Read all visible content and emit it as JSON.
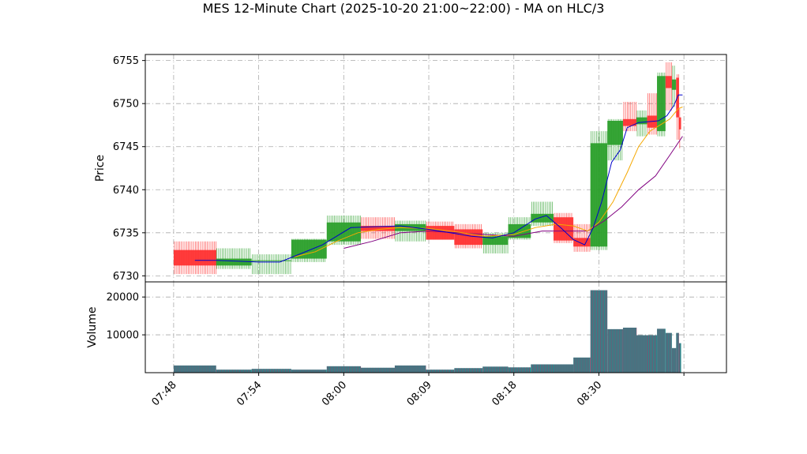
{
  "title": "MES 12-Minute Chart (2025-10-20 21:00~22:00) - MA on HLC/3",
  "colors": {
    "up": "#2ca02c",
    "down": "#ff3333",
    "ma_fast": "#0000cc",
    "ma_mid": "#f5a800",
    "ma_slow": "#800080",
    "volume_fill": "#1f8f8f",
    "volume_stripe": "#b03060",
    "grid": "#aaaaaa"
  },
  "chart_data": {
    "type": "candlestick",
    "price_panel": {
      "ylabel": "Price",
      "ylim": [
        6729.3,
        6755.7
      ],
      "yticks": [
        6730,
        6735,
        6740,
        6745,
        6750,
        6755
      ],
      "grid": true
    },
    "volume_panel": {
      "ylabel": "Volume",
      "ylim": [
        0,
        24000
      ],
      "yticks": [
        10000,
        20000
      ],
      "grid": true
    },
    "x_ticks": [
      {
        "x": 0,
        "label": "07:48"
      },
      {
        "x": 6,
        "label": "07:54"
      },
      {
        "x": 12,
        "label": "08:00"
      },
      {
        "x": 18,
        "label": "08:09"
      },
      {
        "x": 24,
        "label": "08:18"
      },
      {
        "x": 30,
        "label": "08:30"
      },
      {
        "x": 36,
        "label": ""
      }
    ],
    "xlim": [
      -2,
      39
    ],
    "candles": [
      {
        "x": 0,
        "w": 3,
        "o": 6733.0,
        "h": 6734.0,
        "l": 6730.2,
        "c": 6731.2,
        "v": 1900
      },
      {
        "x": 3,
        "w": 2.5,
        "o": 6731.2,
        "h": 6733.2,
        "l": 6730.8,
        "c": 6732.0,
        "v": 800
      },
      {
        "x": 5.5,
        "w": 2.8,
        "o": 6731.8,
        "h": 6732.5,
        "l": 6730.2,
        "c": 6731.8,
        "v": 1000
      },
      {
        "x": 8.3,
        "w": 2.5,
        "o": 6732.0,
        "h": 6734.3,
        "l": 6731.6,
        "c": 6734.2,
        "v": 800
      },
      {
        "x": 10.8,
        "w": 2.4,
        "o": 6734.0,
        "h": 6737.0,
        "l": 6733.6,
        "c": 6736.2,
        "v": 1700
      },
      {
        "x": 13.2,
        "w": 2.4,
        "o": 6735.8,
        "h": 6736.8,
        "l": 6734.3,
        "c": 6735.2,
        "v": 1300
      },
      {
        "x": 15.6,
        "w": 2.2,
        "o": 6735.2,
        "h": 6736.4,
        "l": 6734.0,
        "c": 6736.0,
        "v": 1900
      },
      {
        "x": 17.8,
        "w": 2.0,
        "o": 6735.8,
        "h": 6736.3,
        "l": 6734.2,
        "c": 6734.2,
        "v": 800
      },
      {
        "x": 19.8,
        "w": 2.0,
        "o": 6735.4,
        "h": 6736.0,
        "l": 6733.2,
        "c": 6733.6,
        "v": 1200
      },
      {
        "x": 21.8,
        "w": 1.8,
        "o": 6733.6,
        "h": 6735.0,
        "l": 6732.6,
        "c": 6734.6,
        "v": 1600
      },
      {
        "x": 23.6,
        "w": 1.6,
        "o": 6734.4,
        "h": 6736.8,
        "l": 6734.2,
        "c": 6736.0,
        "v": 1400
      },
      {
        "x": 25.2,
        "w": 1.6,
        "o": 6736.2,
        "h": 6738.6,
        "l": 6735.8,
        "c": 6737.2,
        "v": 2200
      },
      {
        "x": 26.8,
        "w": 1.4,
        "o": 6736.8,
        "h": 6737.3,
        "l": 6733.8,
        "c": 6734.1,
        "v": 2200
      },
      {
        "x": 28.2,
        "w": 1.2,
        "o": 6734.4,
        "h": 6736.0,
        "l": 6732.8,
        "c": 6733.4,
        "v": 4000
      },
      {
        "x": 29.4,
        "w": 1.2,
        "o": 6733.4,
        "h": 6746.8,
        "l": 6733.0,
        "c": 6745.4,
        "v": 21800
      },
      {
        "x": 30.6,
        "w": 1.1,
        "o": 6745.2,
        "h": 6748.2,
        "l": 6743.4,
        "c": 6748.0,
        "v": 11500
      },
      {
        "x": 31.7,
        "w": 0.95,
        "o": 6748.2,
        "h": 6750.2,
        "l": 6746.8,
        "c": 6747.4,
        "v": 11900
      },
      {
        "x": 32.65,
        "w": 0.75,
        "o": 6747.6,
        "h": 6749.2,
        "l": 6746.2,
        "c": 6748.4,
        "v": 9900
      },
      {
        "x": 33.4,
        "w": 0.7,
        "o": 6748.6,
        "h": 6751.2,
        "l": 6746.4,
        "c": 6747.2,
        "v": 9900
      },
      {
        "x": 34.1,
        "w": 0.6,
        "o": 6746.8,
        "h": 6753.6,
        "l": 6746.2,
        "c": 6753.2,
        "v": 11600
      },
      {
        "x": 34.7,
        "w": 0.45,
        "o": 6753.2,
        "h": 6754.8,
        "l": 6749.2,
        "c": 6751.8,
        "v": 10500
      },
      {
        "x": 35.15,
        "w": 0.3,
        "o": 6751.6,
        "h": 6754.4,
        "l": 6749.6,
        "c": 6752.8,
        "v": 6500
      },
      {
        "x": 35.45,
        "w": 0.2,
        "o": 6753.0,
        "h": 6753.4,
        "l": 6745.8,
        "c": 6748.4,
        "v": 10500
      },
      {
        "x": 35.65,
        "w": 0.15,
        "o": 6748.4,
        "h": 6749.4,
        "l": 6744.8,
        "c": 6747.0,
        "v": 7800
      }
    ],
    "ma_fast": [
      [
        1.5,
        6731.8
      ],
      [
        3,
        6731.8
      ],
      [
        4.5,
        6731.7
      ],
      [
        6,
        6731.6
      ],
      [
        7.5,
        6731.6
      ],
      [
        9,
        6732.6
      ],
      [
        10.5,
        6733.6
      ],
      [
        11.5,
        6734.6
      ],
      [
        12.5,
        6735.6
      ],
      [
        14,
        6735.7
      ],
      [
        16,
        6735.8
      ],
      [
        18,
        6735.4
      ],
      [
        19.5,
        6735.0
      ],
      [
        21,
        6734.6
      ],
      [
        22.5,
        6734.4
      ],
      [
        24,
        6735.0
      ],
      [
        25.5,
        6736.6
      ],
      [
        26.3,
        6737.0
      ],
      [
        27.3,
        6735.6
      ],
      [
        28.2,
        6734.2
      ],
      [
        29.0,
        6733.6
      ],
      [
        29.6,
        6735.6
      ],
      [
        30.2,
        6738.6
      ],
      [
        30.9,
        6743.2
      ],
      [
        31.5,
        6744.6
      ],
      [
        32.0,
        6747.2
      ],
      [
        32.8,
        6747.8
      ],
      [
        33.5,
        6747.9
      ],
      [
        34.2,
        6748.0
      ],
      [
        34.8,
        6748.6
      ],
      [
        35.3,
        6749.8
      ],
      [
        35.6,
        6751.0
      ],
      [
        35.9,
        6751.0
      ]
    ],
    "ma_mid": [
      [
        8.5,
        6732.2
      ],
      [
        10,
        6732.8
      ],
      [
        11.5,
        6734.0
      ],
      [
        13,
        6735.0
      ],
      [
        14.5,
        6735.4
      ],
      [
        16,
        6735.6
      ],
      [
        18,
        6735.5
      ],
      [
        20,
        6735.1
      ],
      [
        22,
        6734.6
      ],
      [
        24,
        6734.8
      ],
      [
        25.5,
        6735.6
      ],
      [
        27,
        6736.0
      ],
      [
        28.2,
        6735.8
      ],
      [
        29.2,
        6735.2
      ],
      [
        30.0,
        6736.2
      ],
      [
        31.0,
        6738.6
      ],
      [
        32.0,
        6742.0
      ],
      [
        32.8,
        6745.0
      ],
      [
        33.6,
        6746.8
      ],
      [
        34.4,
        6747.6
      ],
      [
        35.0,
        6748.2
      ],
      [
        35.6,
        6749.4
      ],
      [
        35.9,
        6749.6
      ]
    ],
    "ma_slow": [
      [
        12,
        6733.2
      ],
      [
        14,
        6734.0
      ],
      [
        16,
        6735.0
      ],
      [
        18,
        6735.2
      ],
      [
        20,
        6735.0
      ],
      [
        22,
        6734.8
      ],
      [
        24,
        6734.6
      ],
      [
        26,
        6735.2
      ],
      [
        28,
        6735.2
      ],
      [
        29.2,
        6735.2
      ],
      [
        30.4,
        6736.4
      ],
      [
        31.6,
        6738.0
      ],
      [
        32.8,
        6740.0
      ],
      [
        34.0,
        6741.6
      ],
      [
        35.0,
        6744.0
      ],
      [
        35.9,
        6746.2
      ]
    ]
  }
}
